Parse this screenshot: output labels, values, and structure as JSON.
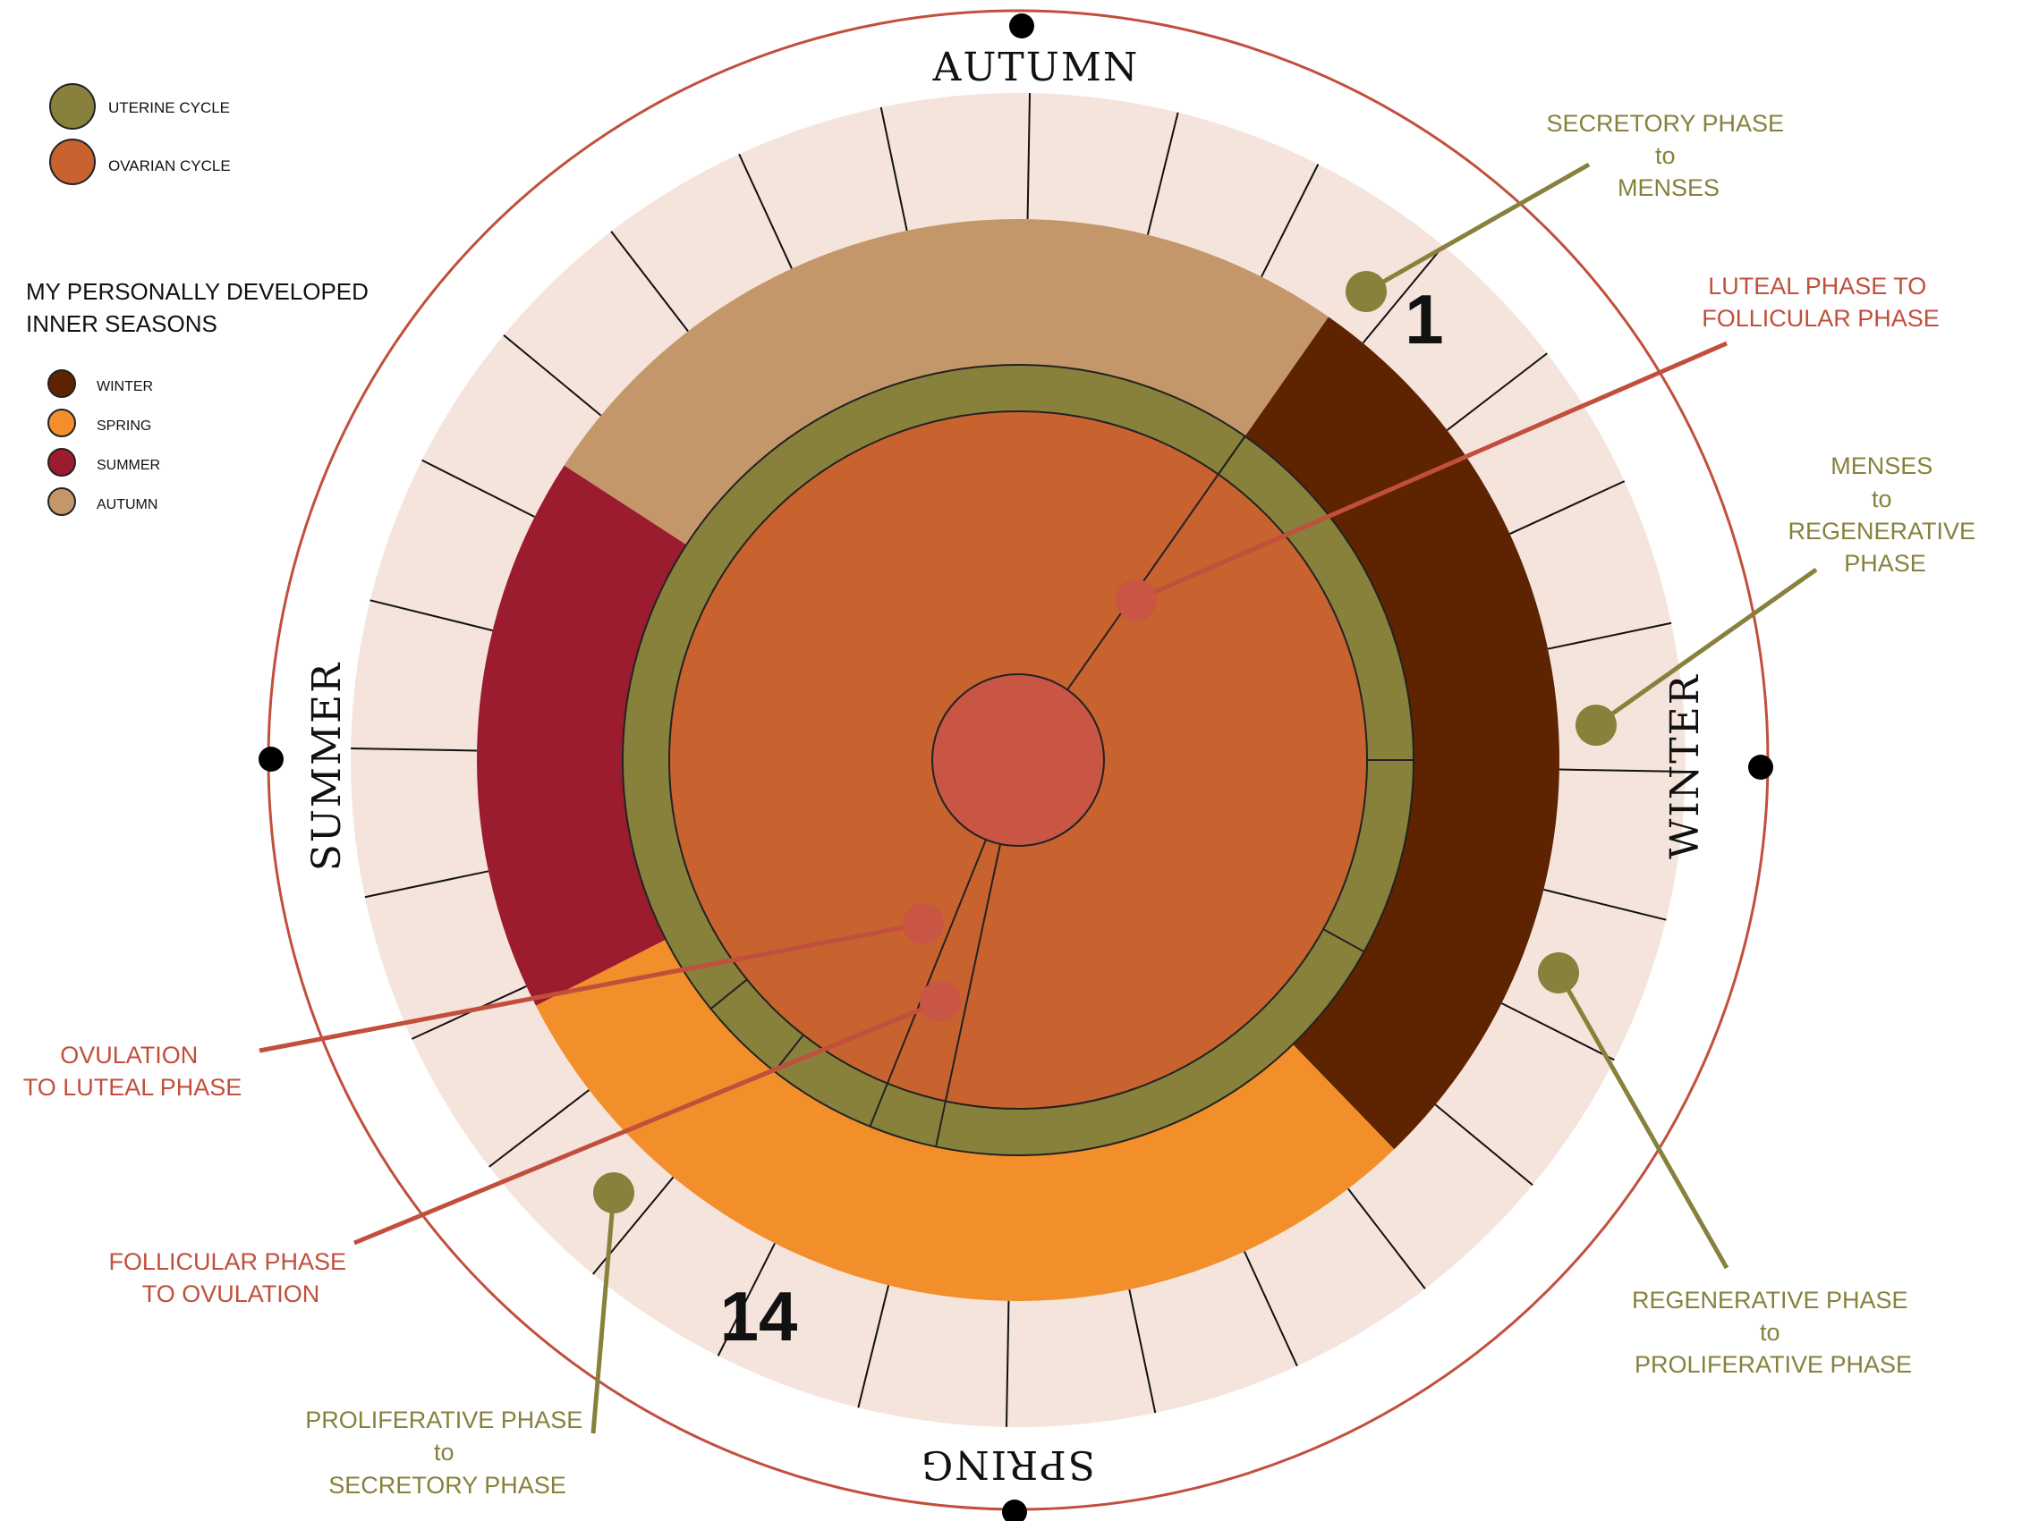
{
  "legend": {
    "uterine_label": "UTERINE CYCLE",
    "ovarian_label": "OVARIAN CYCLE",
    "heading_line1": "MY PERSONALLY DEVELOPED",
    "heading_line2": "INNER SEASONS",
    "winter": "WINTER",
    "spring": "SPRING",
    "summer": "SUMMER",
    "autumn": "AUTUMN"
  },
  "seasons": {
    "autumn": "AUTUMN",
    "winter": "WINTER",
    "spring": "SPRING",
    "summer": "SUMMER"
  },
  "days": {
    "day_1": "1",
    "day_14": "14"
  },
  "callouts": {
    "secretory_to_menses": [
      "SECRETORY PHASE",
      "to",
      "MENSES"
    ],
    "luteal_to_follicular": [
      "LUTEAL PHASE TO",
      "FOLLICULAR PHASE"
    ],
    "menses_to_regenerative": [
      "MENSES",
      "to",
      "REGENERATIVE",
      "PHASE"
    ],
    "regenerative_to_proliferative": [
      "REGENERATIVE PHASE",
      "to",
      "PROLIFERATIVE PHASE"
    ],
    "proliferative_to_secretory": [
      "PROLIFERATIVE PHASE",
      "to",
      "SECRETORY PHASE"
    ],
    "follicular_to_ovulation": [
      "FOLLICULAR PHASE",
      "TO OVULATION"
    ],
    "ovulation_to_luteal": [
      "OVULATION",
      "TO LUTEAL PHASE"
    ]
  },
  "colors": {
    "uterine": "#87813C",
    "ovarian": "#C8622F",
    "winter": "#5E2300",
    "spring": "#F28F2A",
    "summer": "#9B1C2E",
    "autumn": "#C4976B",
    "day_ring": "#F5E4DC",
    "outer_ring": "#C14F3C",
    "core": "#C95544",
    "red_text": "#C14F3C",
    "olive_text": "#87813C"
  },
  "cycle": {
    "day_count": 28
  }
}
